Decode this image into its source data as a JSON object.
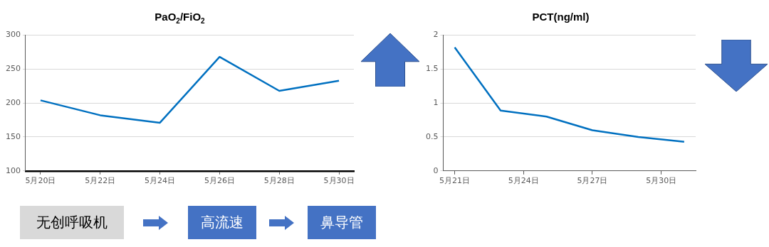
{
  "chart_data": [
    {
      "type": "line",
      "title": "PaO$_{2}$/FiO$_{2}$",
      "x": [
        "--05-20",
        "--05-22",
        "--05-24",
        "--05-26",
        "--05-28",
        "--05-30"
      ],
      "xlim": [
        "--05-19T12:00",
        "--05-30T12:00"
      ],
      "xticks": [
        {
          "value": "--05-20",
          "label": "5月20日"
        },
        {
          "value": "--05-22",
          "label": "5月22日"
        },
        {
          "value": "--05-24",
          "label": "5月24日"
        },
        {
          "value": "--05-26",
          "label": "5月26日"
        },
        {
          "value": "--05-28",
          "label": "5月28日"
        },
        {
          "value": "--05-30",
          "label": "5月30日"
        }
      ],
      "ylim": [
        100,
        300
      ],
      "yticks": [
        100,
        150,
        200,
        250,
        300
      ],
      "grid": "y",
      "series": [
        {
          "color": "#0070c0",
          "values": [
            204,
            182,
            171,
            268,
            218,
            233
          ]
        }
      ]
    },
    {
      "type": "line",
      "title": "PCT(ng/ml)",
      "x": [
        "--05-21",
        "--05-23",
        "--05-25",
        "--05-27",
        "--05-29",
        "--05-31"
      ],
      "xlim": [
        "--05-20T12:00",
        "--05-31T12:00"
      ],
      "xticks": [
        {
          "value": "--05-21",
          "label": "5月21日"
        },
        {
          "value": "--05-24",
          "label": "5月24日"
        },
        {
          "value": "--05-27",
          "label": "5月27日"
        },
        {
          "value": "--05-30",
          "label": "5月30日"
        }
      ],
      "ylim": [
        0,
        2
      ],
      "yticks": [
        0,
        0.5,
        1,
        1.5,
        2
      ],
      "grid": "y",
      "series": [
        {
          "color": "#0070c0",
          "values": [
            1.82,
            0.89,
            0.8,
            0.6,
            0.5,
            0.43
          ]
        }
      ]
    },
    {
      "type": "other",
      "annotations": [
        "无创呼吸机",
        "高流速",
        "鼻导管"
      ]
    }
  ]
}
